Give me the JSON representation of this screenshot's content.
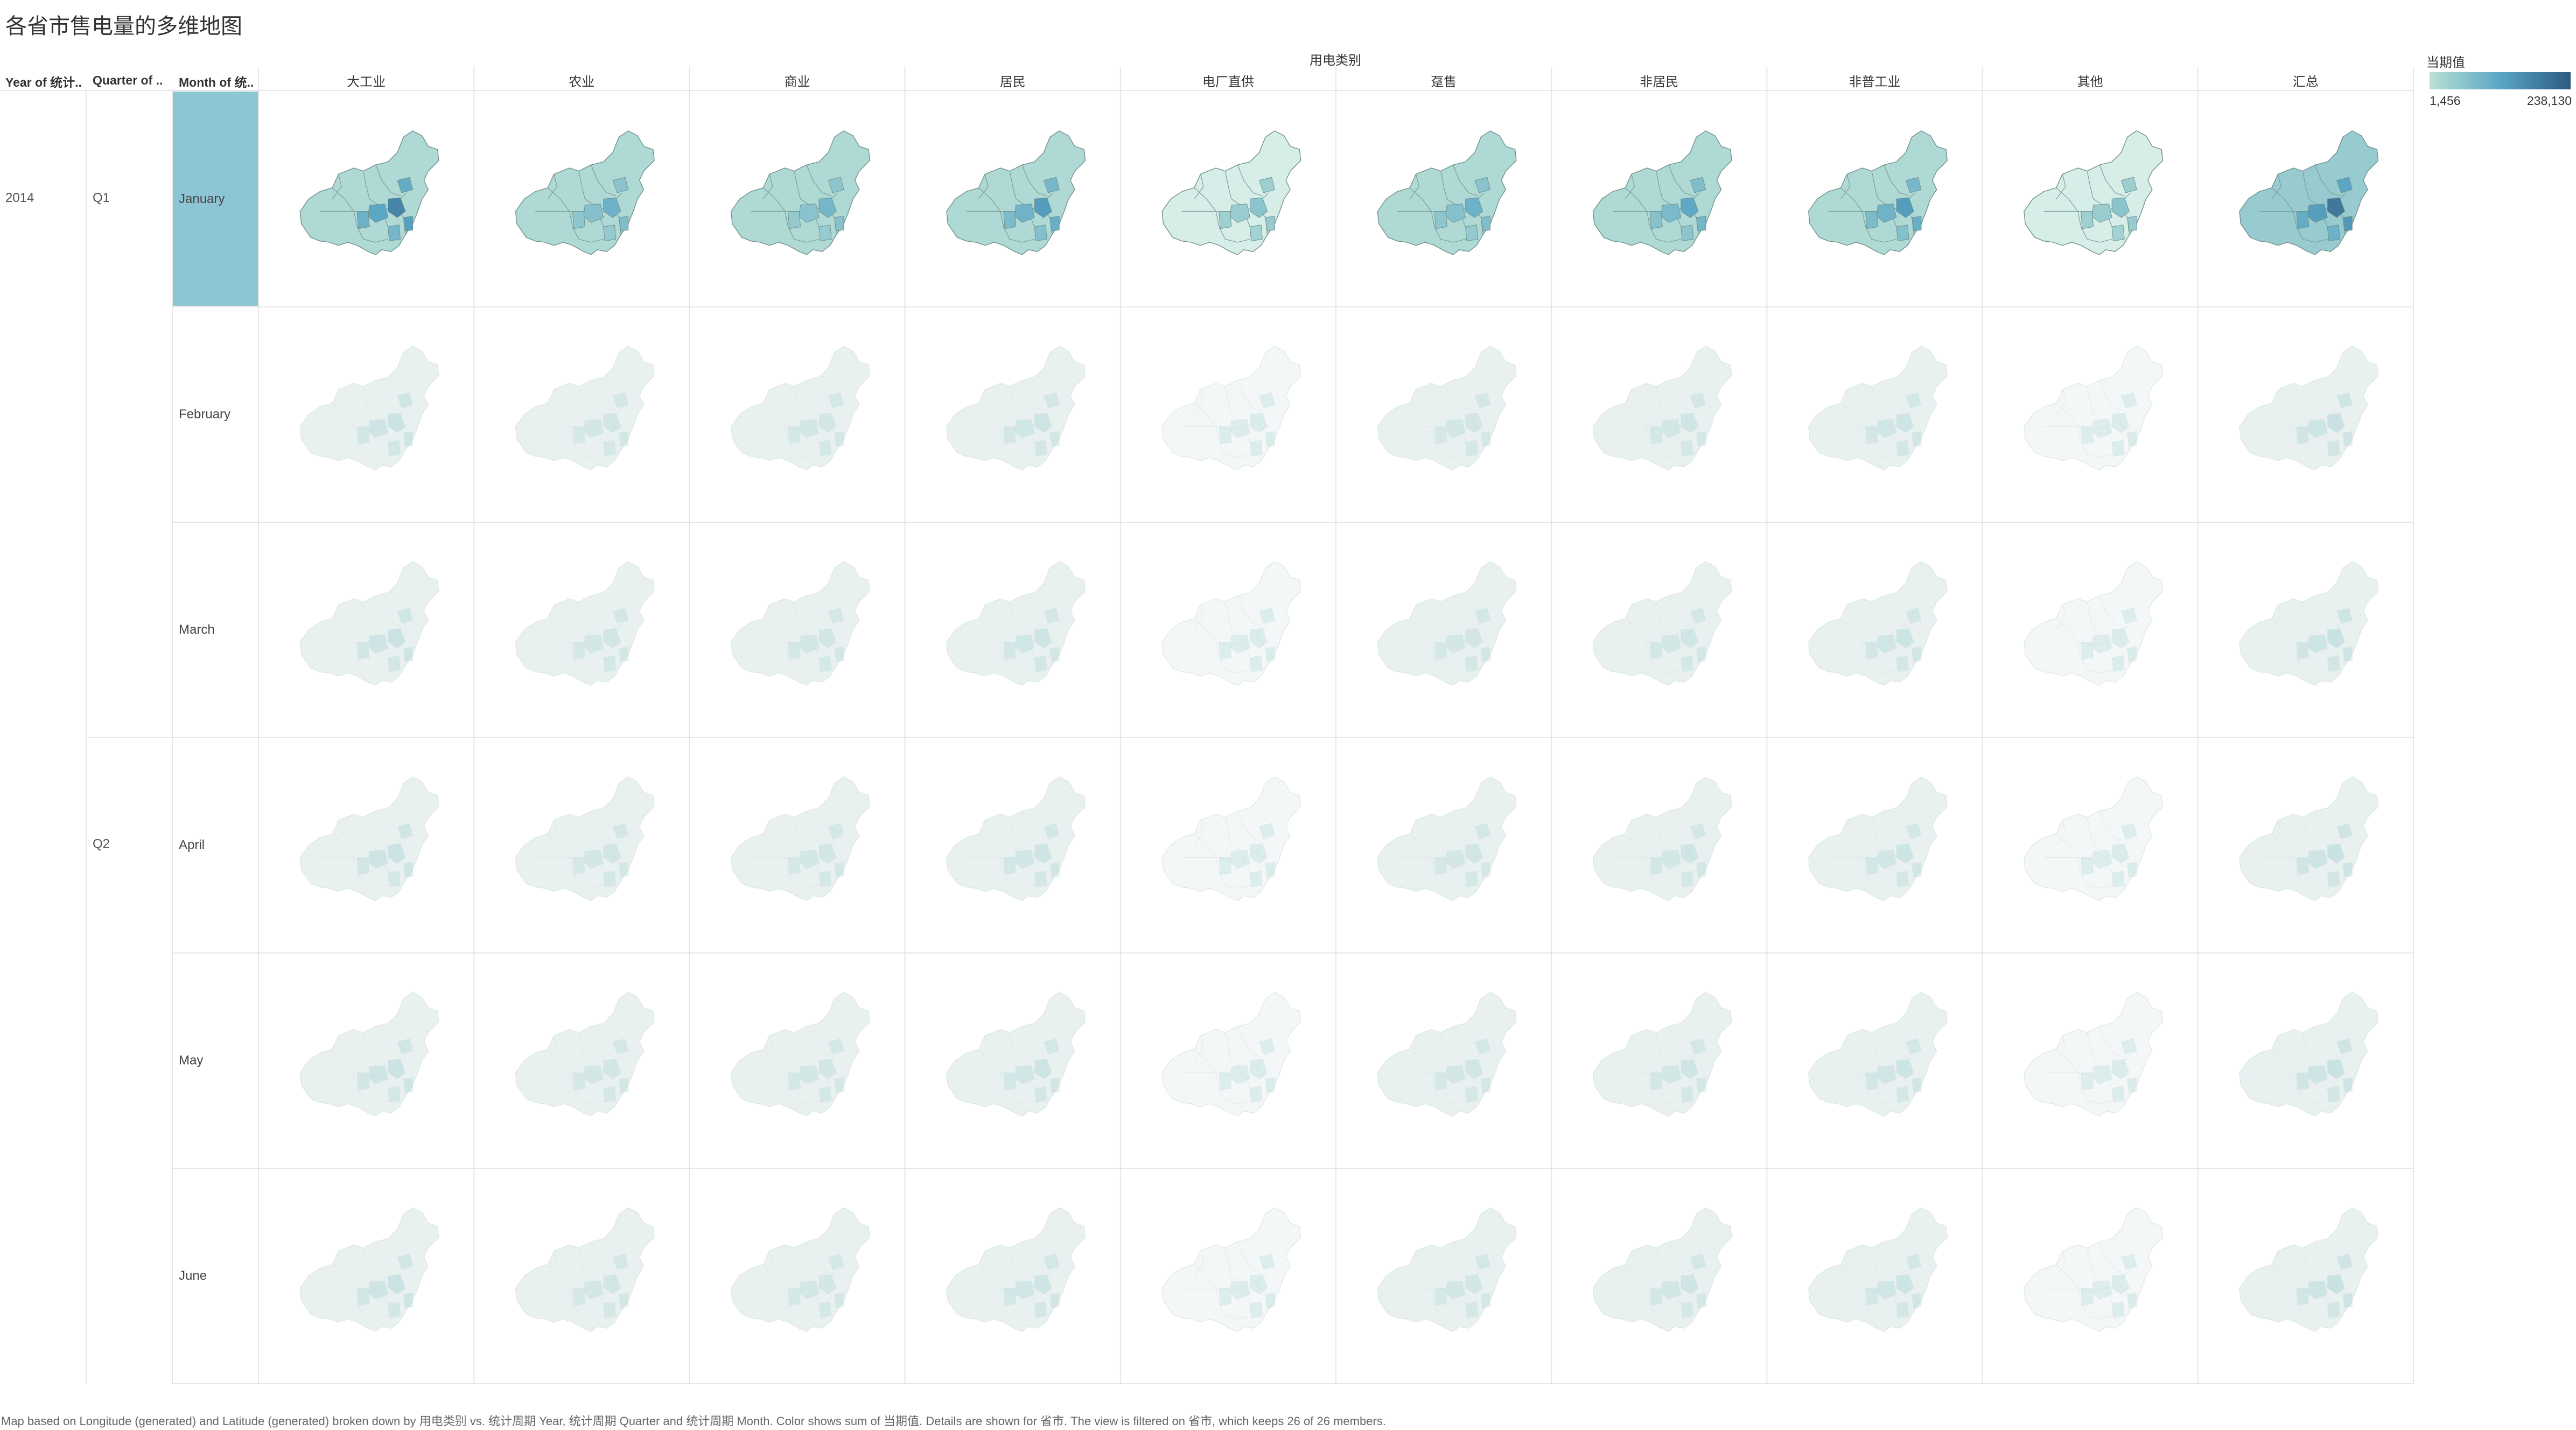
{
  "title": "各省市售电量的多维地图",
  "headers": {
    "year": "Year of 统计..",
    "quarter": "Quarter of ..",
    "month": "Month of 统..",
    "column_group": "用电类别"
  },
  "columns": [
    "大工业",
    "农业",
    "商业",
    "居民",
    "电厂直供",
    "趸售",
    "非居民",
    "非普工业",
    "其他",
    "汇总"
  ],
  "year": "2014",
  "quarters": [
    {
      "label": "Q1",
      "months": [
        "January",
        "February",
        "March"
      ]
    },
    {
      "label": "Q2",
      "months": [
        "April",
        "May",
        "June"
      ]
    }
  ],
  "months": [
    "January",
    "February",
    "March",
    "April",
    "May",
    "June"
  ],
  "selected_month": "January",
  "legend": {
    "title": "当期值",
    "min_label": "1,456",
    "max_label": "238,130",
    "min_color": "#b9e0d6",
    "mid_color": "#5aa6c4",
    "max_color": "#2c5a83"
  },
  "colors": {
    "selected_row": "#8dc5d4",
    "faded_fill": "#e8f0f0",
    "gridline": "#e6e6e6"
  },
  "footer": "Map based on Longitude (generated) and Latitude (generated) broken down by 用电类别 vs. 统计周期 Year, 统计周期 Quarter and 统计周期 Month.  Color shows sum of 当期值.  Details are shown for 省市. The view is filtered on 省市, which keeps 26 of 26 members."
}
